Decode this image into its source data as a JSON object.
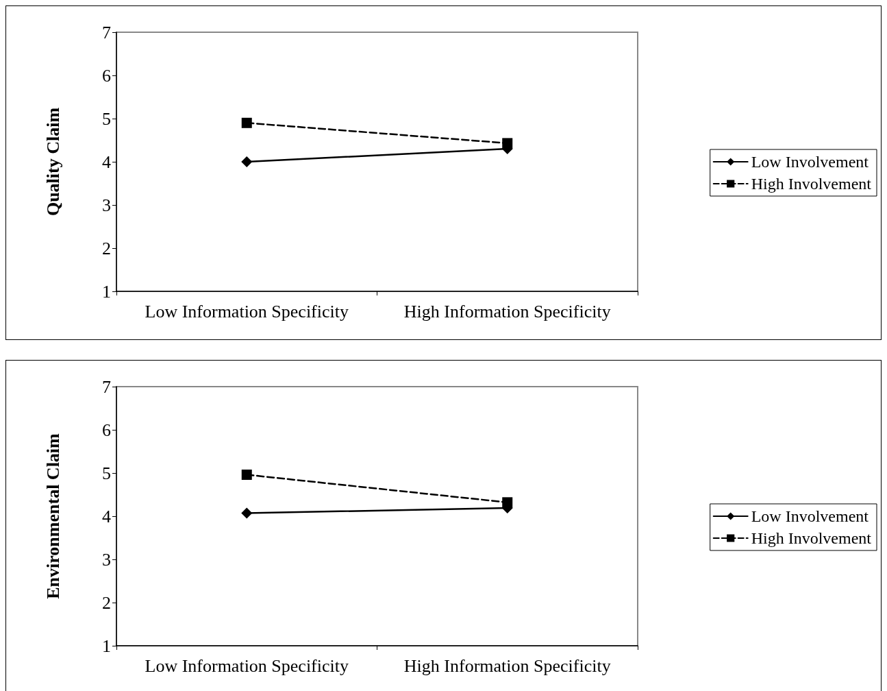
{
  "chart_data": [
    {
      "type": "line",
      "ylabel": "Quality Claim",
      "categories": [
        "Low Information Specificity",
        "High Information Specificity"
      ],
      "series": [
        {
          "name": "Low Involvement",
          "color": "#000000",
          "marker": "diamond",
          "line_style": "solid",
          "values": [
            4.0,
            4.3
          ]
        },
        {
          "name": "High Involvement",
          "color": "#000000",
          "marker": "square",
          "line_style": "dashed",
          "values": [
            4.9,
            4.43
          ]
        }
      ],
      "ylim": [
        1,
        7
      ],
      "yticks": [
        1,
        2,
        3,
        4,
        5,
        6,
        7
      ],
      "grid": false,
      "legend": "right"
    },
    {
      "type": "line",
      "ylabel": "Environmental Claim",
      "categories": [
        "Low Information Specificity",
        "High Information Specificity"
      ],
      "series": [
        {
          "name": "Low Involvement",
          "color": "#000000",
          "marker": "diamond",
          "line_style": "solid",
          "values": [
            4.07,
            4.19
          ]
        },
        {
          "name": "High Involvement",
          "color": "#000000",
          "marker": "square",
          "line_style": "dashed",
          "values": [
            4.96,
            4.32
          ]
        }
      ],
      "ylim": [
        1,
        7
      ],
      "yticks": [
        1,
        2,
        3,
        4,
        5,
        6,
        7
      ],
      "grid": false,
      "legend": "right"
    }
  ]
}
